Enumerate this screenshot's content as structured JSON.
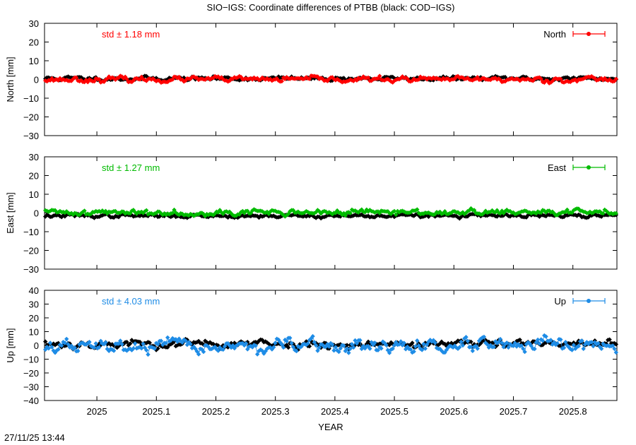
{
  "title": "SIO−IGS: Coordinate differences of PTBB (black: COD−IGS)",
  "xlabel": "YEAR",
  "timestamp": "27/11/25 13:44",
  "colors": {
    "reference": "#000000",
    "north": "#ff0000",
    "east": "#00bb00",
    "up": "#1e8ce6"
  },
  "chart_data": [
    {
      "type": "scatter",
      "name": "north",
      "ylabel": "North [mm]",
      "ylim": [
        -30,
        30
      ],
      "yticks": [
        "30",
        "20",
        "10",
        "0",
        "−10",
        "−20",
        "−30"
      ],
      "ytick_values": [
        30,
        20,
        10,
        0,
        -10,
        -20,
        -30
      ],
      "xlim": [
        2024.912,
        2025.874
      ],
      "xticks": [
        "2025",
        "2025.1",
        "2025.2",
        "2025.3",
        "2025.4",
        "2025.5",
        "2025.6",
        "2025.7",
        "2025.8"
      ],
      "xtick_values": [
        2025.0,
        2025.1,
        2025.2,
        2025.3,
        2025.4,
        2025.5,
        2025.6,
        2025.7,
        2025.8
      ],
      "std_label": "std ± 1.18 mm",
      "legend": "North",
      "legend_position": "top-right",
      "series": [
        {
          "name": "COD−IGS",
          "color": "#000000",
          "mean": 0.5,
          "std": 0.9,
          "seed": 11
        },
        {
          "name": "North",
          "color": "#ff0000",
          "mean": 0.0,
          "std": 1.18,
          "seed": 23
        }
      ]
    },
    {
      "type": "scatter",
      "name": "east",
      "ylabel": "East [mm]",
      "ylim": [
        -30,
        30
      ],
      "yticks": [
        "30",
        "20",
        "10",
        "0",
        "−10",
        "−20",
        "−30"
      ],
      "ytick_values": [
        30,
        20,
        10,
        0,
        -10,
        -20,
        -30
      ],
      "xlim": [
        2024.912,
        2025.874
      ],
      "xticks": [
        "2025",
        "2025.1",
        "2025.2",
        "2025.3",
        "2025.4",
        "2025.5",
        "2025.6",
        "2025.7",
        "2025.8"
      ],
      "xtick_values": [
        2025.0,
        2025.1,
        2025.2,
        2025.3,
        2025.4,
        2025.5,
        2025.6,
        2025.7,
        2025.8
      ],
      "std_label": "std ± 1.27 mm",
      "legend": "East",
      "legend_position": "top-right",
      "series": [
        {
          "name": "COD−IGS",
          "color": "#000000",
          "mean": -1.5,
          "std": 0.8,
          "seed": 37
        },
        {
          "name": "East",
          "color": "#00bb00",
          "mean": 0.3,
          "std": 1.27,
          "seed": 41
        }
      ]
    },
    {
      "type": "scatter",
      "name": "up",
      "ylabel": "Up [mm]",
      "ylim": [
        -40,
        40
      ],
      "yticks": [
        "40",
        "30",
        "20",
        "10",
        "0",
        "−10",
        "−20",
        "−30",
        "−40"
      ],
      "ytick_values": [
        40,
        30,
        20,
        10,
        0,
        -10,
        -20,
        -30,
        -40
      ],
      "xlim": [
        2024.912,
        2025.874
      ],
      "xticks": [
        "2025",
        "2025.1",
        "2025.2",
        "2025.3",
        "2025.4",
        "2025.5",
        "2025.6",
        "2025.7",
        "2025.8"
      ],
      "xtick_values": [
        2025.0,
        2025.1,
        2025.2,
        2025.3,
        2025.4,
        2025.5,
        2025.6,
        2025.7,
        2025.8
      ],
      "std_label": "std ± 4.03 mm",
      "legend": "Up",
      "legend_position": "top-right",
      "series": [
        {
          "name": "COD−IGS",
          "color": "#000000",
          "mean": 1.0,
          "std": 2.5,
          "seed": 53
        },
        {
          "name": "Up",
          "color": "#1e8ce6",
          "mean": -1.0,
          "std": 4.03,
          "seed": 67
        }
      ]
    }
  ]
}
